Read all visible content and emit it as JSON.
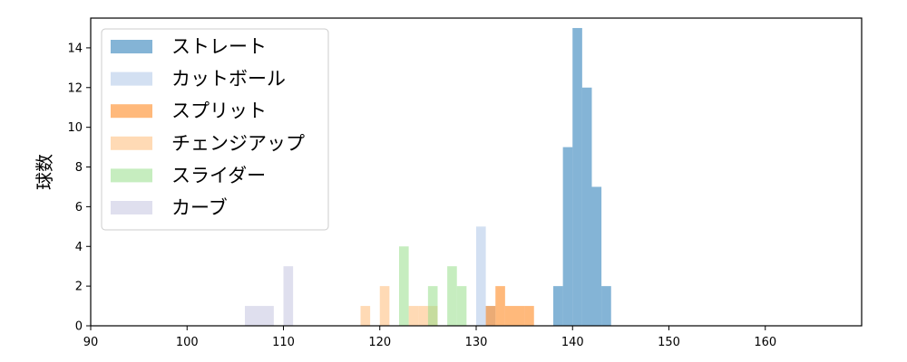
{
  "chart_data": {
    "type": "histogram",
    "title": "",
    "xlabel": "",
    "ylabel": "球数",
    "xlim": [
      90,
      170
    ],
    "ylim": [
      0,
      15.5
    ],
    "xticks": [
      90,
      100,
      110,
      120,
      130,
      140,
      150,
      160
    ],
    "yticks": [
      0,
      2,
      4,
      6,
      8,
      10,
      12,
      14
    ],
    "grid": false,
    "legend_position": "top-left",
    "series": [
      {
        "name": "ストレート",
        "color": "#1f77b4",
        "bins": [
          {
            "x0": 138.0,
            "x1": 139.0,
            "count": 2
          },
          {
            "x0": 139.0,
            "x1": 140.0,
            "count": 9
          },
          {
            "x0": 140.0,
            "x1": 141.0,
            "count": 15
          },
          {
            "x0": 141.0,
            "x1": 142.0,
            "count": 12
          },
          {
            "x0": 142.0,
            "x1": 143.0,
            "count": 7
          },
          {
            "x0": 143.0,
            "x1": 144.0,
            "count": 2
          }
        ]
      },
      {
        "name": "カットボール",
        "color": "#aec7e8",
        "bins": [
          {
            "x0": 130.0,
            "x1": 131.0,
            "count": 5
          },
          {
            "x0": 131.0,
            "x1": 132.0,
            "count": 1
          }
        ]
      },
      {
        "name": "スプリット",
        "color": "#ff7f0e",
        "bins": [
          {
            "x0": 131.0,
            "x1": 132.0,
            "count": 1
          },
          {
            "x0": 132.0,
            "x1": 133.0,
            "count": 2
          },
          {
            "x0": 133.0,
            "x1": 134.0,
            "count": 1
          },
          {
            "x0": 134.0,
            "x1": 135.0,
            "count": 1
          },
          {
            "x0": 135.0,
            "x1": 136.0,
            "count": 1
          }
        ]
      },
      {
        "name": "チェンジアップ",
        "color": "#ffbb78",
        "bins": [
          {
            "x0": 118.0,
            "x1": 119.0,
            "count": 1
          },
          {
            "x0": 120.0,
            "x1": 121.0,
            "count": 2
          },
          {
            "x0": 123.0,
            "x1": 124.0,
            "count": 1
          },
          {
            "x0": 124.0,
            "x1": 125.0,
            "count": 1
          },
          {
            "x0": 125.0,
            "x1": 126.0,
            "count": 1
          }
        ]
      },
      {
        "name": "スライダー",
        "color": "#98df8a",
        "bins": [
          {
            "x0": 122.0,
            "x1": 123.0,
            "count": 4
          },
          {
            "x0": 125.0,
            "x1": 126.0,
            "count": 2
          },
          {
            "x0": 127.0,
            "x1": 128.0,
            "count": 3
          },
          {
            "x0": 128.0,
            "x1": 129.0,
            "count": 2
          }
        ]
      },
      {
        "name": "カーブ",
        "color": "#c5c5e0",
        "bins": [
          {
            "x0": 106.0,
            "x1": 107.5,
            "count": 1
          },
          {
            "x0": 107.5,
            "x1": 109.0,
            "count": 1
          },
          {
            "x0": 110.0,
            "x1": 111.0,
            "count": 3
          }
        ]
      }
    ]
  }
}
